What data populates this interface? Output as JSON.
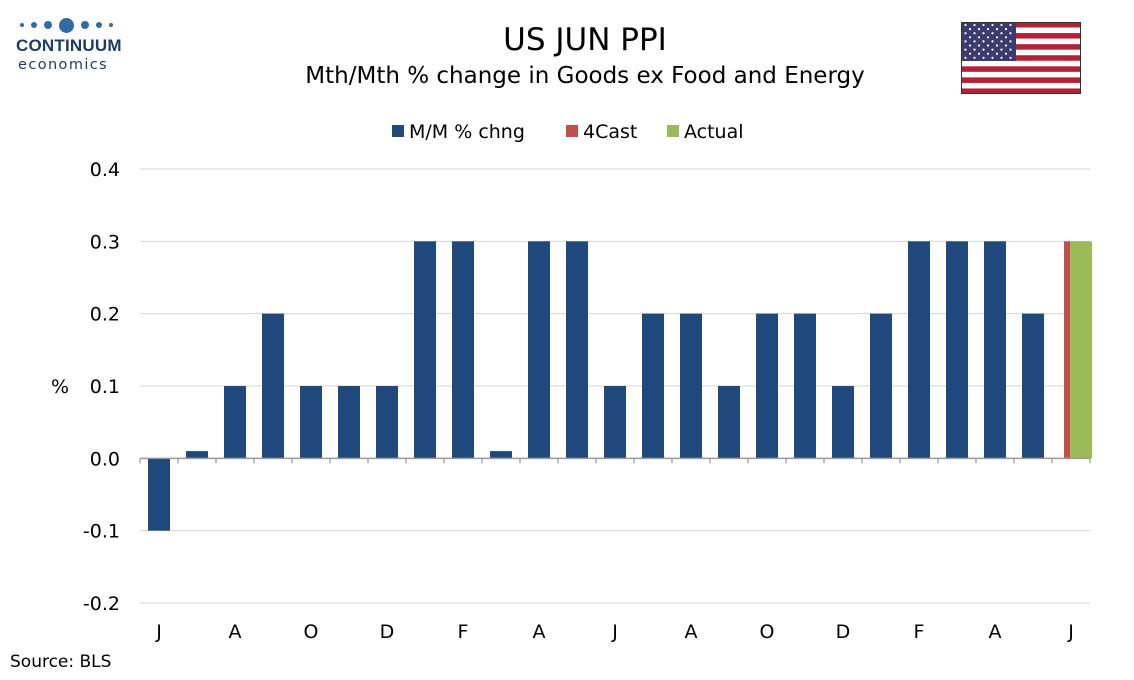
{
  "logo": {
    "name": "CONTINUUM",
    "sub": "economics",
    "color": "#2e6da4"
  },
  "header": {
    "title": "US JUN PPI",
    "subtitle": "Mth/Mth % change in Goods ex Food and Energy"
  },
  "flag": {
    "icon": "us-flag-icon"
  },
  "source": "Source: BLS",
  "chart_data": {
    "type": "bar",
    "title": "US JUN PPI",
    "subtitle": "Mth/Mth % change in Goods ex Food and Energy",
    "ylabel": "%",
    "xlabel": "",
    "ylim": [
      -0.2,
      0.4
    ],
    "yticks": [
      -0.2,
      -0.1,
      0.0,
      0.1,
      0.2,
      0.3,
      0.4
    ],
    "ytick_labels": [
      "-0.2",
      "-0.1",
      "0.0",
      "0.1",
      "0.2",
      "0.3",
      "0.4"
    ],
    "grid": true,
    "legend_position": "top-center",
    "x_tick_labels": [
      "J",
      "A",
      "O",
      "D",
      "F",
      "A",
      "J",
      "A",
      "O",
      "D",
      "F",
      "A",
      "J"
    ],
    "series": [
      {
        "name": "M/M % chng",
        "color": "#1f497d",
        "values": [
          -0.1,
          0.01,
          0.1,
          0.2,
          0.1,
          0.1,
          0.1,
          0.3,
          0.3,
          0.01,
          0.3,
          0.3,
          0.1,
          0.2,
          0.2,
          0.1,
          0.2,
          0.2,
          0.1,
          0.2,
          0.3,
          0.3,
          0.3,
          0.2,
          null
        ]
      },
      {
        "name": "4Cast",
        "color": "#c0504d",
        "values": [
          null,
          null,
          null,
          null,
          null,
          null,
          null,
          null,
          null,
          null,
          null,
          null,
          null,
          null,
          null,
          null,
          null,
          null,
          null,
          null,
          null,
          null,
          null,
          null,
          0.3
        ]
      },
      {
        "name": "Actual",
        "color": "#9bbb59",
        "values": [
          null,
          null,
          null,
          null,
          null,
          null,
          null,
          null,
          null,
          null,
          null,
          null,
          null,
          null,
          null,
          null,
          null,
          null,
          null,
          null,
          null,
          null,
          null,
          null,
          0.3
        ]
      }
    ]
  }
}
